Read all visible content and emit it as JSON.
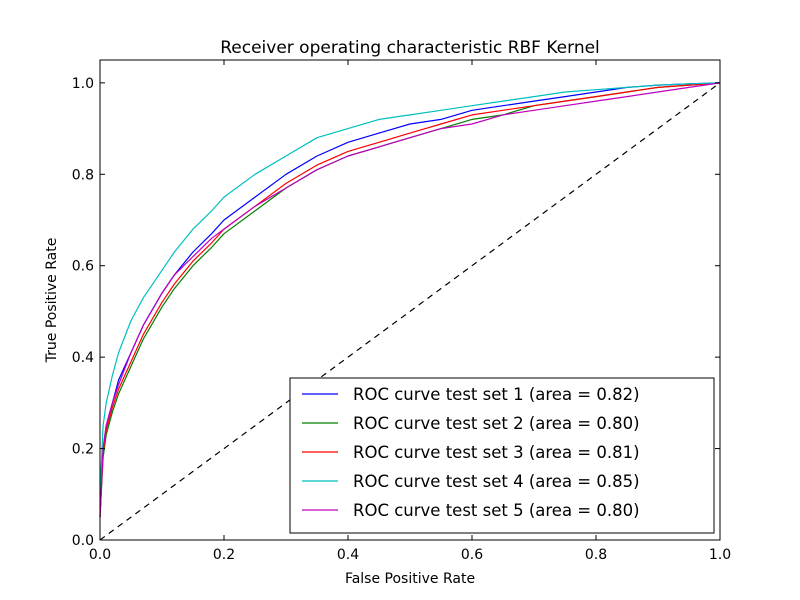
{
  "chart_data": {
    "type": "line",
    "title": "Receiver operating characteristic RBF Kernel",
    "xlabel": "False Positive Rate",
    "ylabel": "True Positive Rate",
    "xlim": [
      0.0,
      1.0
    ],
    "ylim": [
      0.0,
      1.05
    ],
    "xticks": [
      "0.0",
      "0.2",
      "0.4",
      "0.6",
      "0.8",
      "1.0"
    ],
    "yticks": [
      "0.0",
      "0.2",
      "0.4",
      "0.6",
      "0.8",
      "1.0"
    ],
    "grid": false,
    "legend_position": "lower right",
    "series": [
      {
        "name": "ROC curve test set 1 (area = 0.82)",
        "color": "#0000ff",
        "x": [
          0.0,
          0.005,
          0.01,
          0.02,
          0.03,
          0.05,
          0.07,
          0.1,
          0.12,
          0.15,
          0.18,
          0.2,
          0.25,
          0.3,
          0.35,
          0.4,
          0.45,
          0.5,
          0.55,
          0.6,
          0.65,
          0.7,
          0.75,
          0.8,
          0.85,
          0.9,
          0.95,
          1.0
        ],
        "y": [
          0.05,
          0.2,
          0.25,
          0.3,
          0.35,
          0.41,
          0.47,
          0.54,
          0.58,
          0.63,
          0.67,
          0.7,
          0.75,
          0.8,
          0.84,
          0.87,
          0.89,
          0.91,
          0.92,
          0.94,
          0.95,
          0.96,
          0.97,
          0.98,
          0.99,
          0.995,
          0.998,
          1.0
        ]
      },
      {
        "name": "ROC curve test set 2 (area = 0.80)",
        "color": "#008000",
        "x": [
          0.0,
          0.005,
          0.01,
          0.02,
          0.03,
          0.05,
          0.07,
          0.1,
          0.12,
          0.15,
          0.18,
          0.2,
          0.25,
          0.3,
          0.35,
          0.4,
          0.45,
          0.5,
          0.55,
          0.6,
          0.65,
          0.7,
          0.75,
          0.8,
          0.85,
          0.9,
          0.95,
          1.0
        ],
        "y": [
          0.05,
          0.18,
          0.23,
          0.28,
          0.32,
          0.38,
          0.44,
          0.51,
          0.55,
          0.6,
          0.64,
          0.67,
          0.72,
          0.77,
          0.81,
          0.84,
          0.86,
          0.88,
          0.9,
          0.92,
          0.93,
          0.95,
          0.96,
          0.97,
          0.98,
          0.99,
          0.995,
          1.0
        ]
      },
      {
        "name": "ROC curve test set 3 (area = 0.81)",
        "color": "#ff0000",
        "x": [
          0.0,
          0.005,
          0.01,
          0.02,
          0.03,
          0.05,
          0.07,
          0.1,
          0.12,
          0.15,
          0.18,
          0.2,
          0.25,
          0.3,
          0.35,
          0.4,
          0.45,
          0.5,
          0.55,
          0.6,
          0.65,
          0.7,
          0.75,
          0.8,
          0.85,
          0.9,
          0.95,
          1.0
        ],
        "y": [
          0.05,
          0.19,
          0.24,
          0.29,
          0.33,
          0.39,
          0.45,
          0.52,
          0.56,
          0.61,
          0.65,
          0.68,
          0.73,
          0.78,
          0.82,
          0.85,
          0.87,
          0.89,
          0.91,
          0.93,
          0.94,
          0.95,
          0.96,
          0.97,
          0.98,
          0.99,
          0.995,
          1.0
        ]
      },
      {
        "name": "ROC curve test set 4 (area = 0.85)",
        "color": "#00bfbf",
        "x": [
          0.0,
          0.005,
          0.01,
          0.02,
          0.03,
          0.05,
          0.07,
          0.1,
          0.12,
          0.15,
          0.18,
          0.2,
          0.25,
          0.3,
          0.35,
          0.4,
          0.45,
          0.5,
          0.55,
          0.6,
          0.65,
          0.7,
          0.75,
          0.8,
          0.85,
          0.9,
          0.95,
          1.0
        ],
        "y": [
          0.1,
          0.25,
          0.3,
          0.36,
          0.41,
          0.48,
          0.53,
          0.59,
          0.63,
          0.68,
          0.72,
          0.75,
          0.8,
          0.84,
          0.88,
          0.9,
          0.92,
          0.93,
          0.94,
          0.95,
          0.96,
          0.97,
          0.98,
          0.985,
          0.99,
          0.995,
          0.998,
          1.0
        ]
      },
      {
        "name": "ROC curve test set 5 (area = 0.80)",
        "color": "#bf00bf",
        "x": [
          0.0,
          0.005,
          0.01,
          0.02,
          0.03,
          0.05,
          0.07,
          0.1,
          0.12,
          0.15,
          0.18,
          0.2,
          0.25,
          0.3,
          0.35,
          0.4,
          0.45,
          0.5,
          0.55,
          0.6,
          0.65,
          0.7,
          0.75,
          0.8,
          0.85,
          0.9,
          0.95,
          1.0
        ],
        "y": [
          0.05,
          0.2,
          0.25,
          0.3,
          0.34,
          0.41,
          0.47,
          0.54,
          0.58,
          0.62,
          0.66,
          0.68,
          0.73,
          0.77,
          0.81,
          0.84,
          0.86,
          0.88,
          0.9,
          0.91,
          0.93,
          0.94,
          0.95,
          0.96,
          0.97,
          0.98,
          0.99,
          1.0
        ]
      }
    ],
    "reference_line": {
      "style": "dashed",
      "color": "#000000",
      "x": [
        0.0,
        1.0
      ],
      "y": [
        0.0,
        1.0
      ]
    }
  }
}
